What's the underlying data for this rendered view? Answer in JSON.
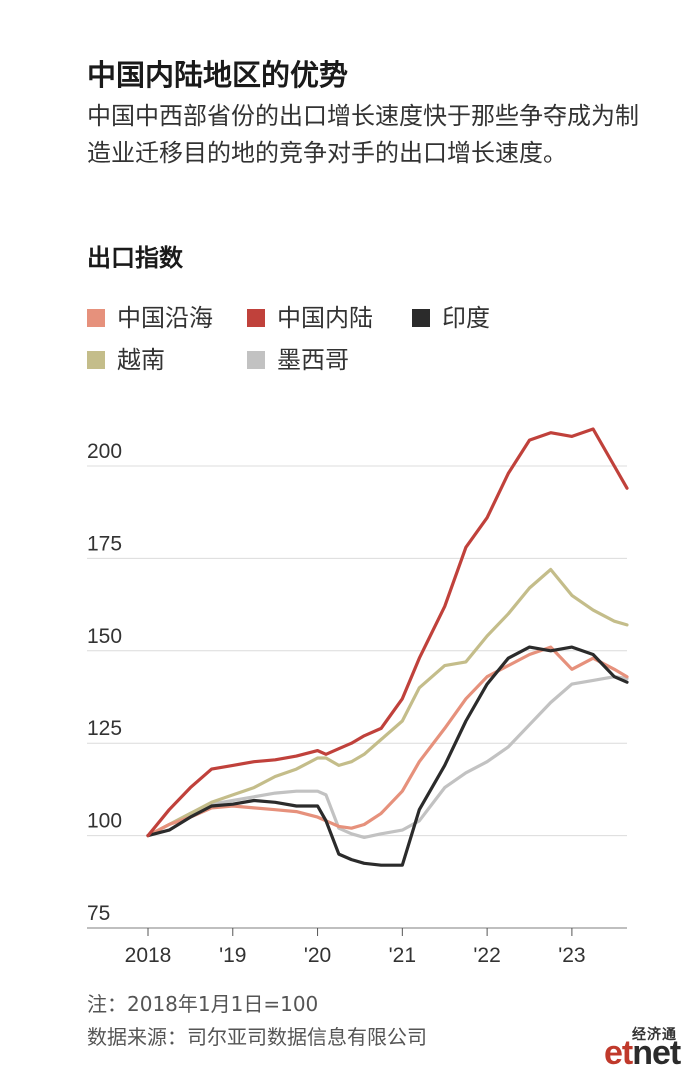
{
  "header": {
    "title": "中国内陆地区的优势",
    "subtitle": "中国中西部省份的出口增长速度快于那些争夺成为制造业迁移目的地的竞争对手的出口增长速度。",
    "y_axis_title": "出口指数"
  },
  "footer": {
    "note": "注：2018年1月1日=100",
    "source": "数据来源：司尔亚司数据信息有限公司"
  },
  "logo": {
    "cn": "经济通",
    "et": "et",
    "net": "net"
  },
  "colors": {
    "中国沿海": "#e6917c",
    "中国内陆": "#c0413b",
    "印度": "#2b2b2b",
    "越南": "#c4bd8a",
    "墨西哥": "#c2c2c2"
  },
  "chart_data": {
    "type": "line",
    "title": "出口指数",
    "xlim": [
      2018,
      2023.65
    ],
    "ylim": [
      75,
      212
    ],
    "yticks": [
      75,
      100,
      125,
      150,
      175,
      200
    ],
    "xticks": [
      {
        "value": 2018,
        "label": "2018"
      },
      {
        "value": 2019,
        "label": "'19"
      },
      {
        "value": 2020,
        "label": "'20"
      },
      {
        "value": 2021,
        "label": "'21"
      },
      {
        "value": 2022,
        "label": "'22"
      },
      {
        "value": 2023,
        "label": "'23"
      }
    ],
    "grid": true,
    "legend_position": "top",
    "series": [
      {
        "name": "中国沿海",
        "x": [
          2018,
          2018.25,
          2018.5,
          2018.75,
          2019,
          2019.25,
          2019.5,
          2019.75,
          2020,
          2020.1,
          2020.25,
          2020.4,
          2020.55,
          2020.75,
          2021,
          2021.2,
          2021.5,
          2021.75,
          2022,
          2022.25,
          2022.5,
          2022.75,
          2023,
          2023.25,
          2023.5,
          2023.65
        ],
        "y": [
          100,
          103,
          105,
          107.5,
          108,
          107.5,
          107,
          106.5,
          105,
          104,
          102.5,
          102,
          103,
          106,
          112,
          120,
          129,
          137,
          143,
          146,
          149,
          151,
          145,
          148,
          145,
          143
        ]
      },
      {
        "name": "中国内陆",
        "x": [
          2018,
          2018.25,
          2018.5,
          2018.75,
          2019,
          2019.25,
          2019.5,
          2019.75,
          2020,
          2020.1,
          2020.25,
          2020.4,
          2020.55,
          2020.75,
          2021,
          2021.2,
          2021.5,
          2021.75,
          2022,
          2022.25,
          2022.5,
          2022.75,
          2023,
          2023.25,
          2023.5,
          2023.65
        ],
        "y": [
          100,
          107,
          113,
          118,
          119,
          120,
          120.5,
          121.5,
          123,
          122,
          123.5,
          125,
          127,
          129,
          137,
          148,
          162,
          178,
          186,
          198,
          207,
          209,
          208,
          210,
          200,
          194
        ]
      },
      {
        "name": "印度",
        "x": [
          2018,
          2018.25,
          2018.5,
          2018.75,
          2019,
          2019.25,
          2019.5,
          2019.75,
          2020,
          2020.1,
          2020.25,
          2020.4,
          2020.55,
          2020.75,
          2021,
          2021.2,
          2021.5,
          2021.75,
          2022,
          2022.25,
          2022.5,
          2022.75,
          2023,
          2023.25,
          2023.5,
          2023.65
        ],
        "y": [
          100,
          101.5,
          105,
          108,
          108.5,
          109.5,
          109,
          108,
          108,
          104,
          95,
          93.5,
          92.5,
          92,
          92,
          107,
          119,
          131,
          141,
          148,
          151,
          150,
          151,
          149,
          143,
          141.5
        ]
      },
      {
        "name": "越南",
        "x": [
          2018,
          2018.25,
          2018.5,
          2018.75,
          2019,
          2019.25,
          2019.5,
          2019.75,
          2020,
          2020.1,
          2020.25,
          2020.4,
          2020.55,
          2020.75,
          2021,
          2021.2,
          2021.5,
          2021.75,
          2022,
          2022.25,
          2022.5,
          2022.75,
          2023,
          2023.25,
          2023.5,
          2023.65
        ],
        "y": [
          100,
          103,
          106,
          109,
          111,
          113,
          116,
          118,
          121,
          121,
          119,
          120,
          122,
          126,
          131,
          140,
          146,
          147,
          154,
          160,
          167,
          172,
          165,
          161,
          158,
          157
        ]
      },
      {
        "name": "墨西哥",
        "x": [
          2018,
          2018.25,
          2018.5,
          2018.75,
          2019,
          2019.25,
          2019.5,
          2019.75,
          2020,
          2020.1,
          2020.25,
          2020.4,
          2020.55,
          2020.75,
          2021,
          2021.2,
          2021.5,
          2021.75,
          2022,
          2022.25,
          2022.5,
          2022.75,
          2023,
          2023.25,
          2023.5,
          2023.65
        ],
        "y": [
          100,
          103,
          106,
          108.5,
          109.5,
          110.5,
          111.5,
          112,
          112,
          111,
          102,
          100.5,
          99.5,
          100.5,
          101.5,
          104,
          113,
          117,
          120,
          124,
          130,
          136,
          141,
          142,
          143,
          142.5
        ]
      }
    ]
  }
}
